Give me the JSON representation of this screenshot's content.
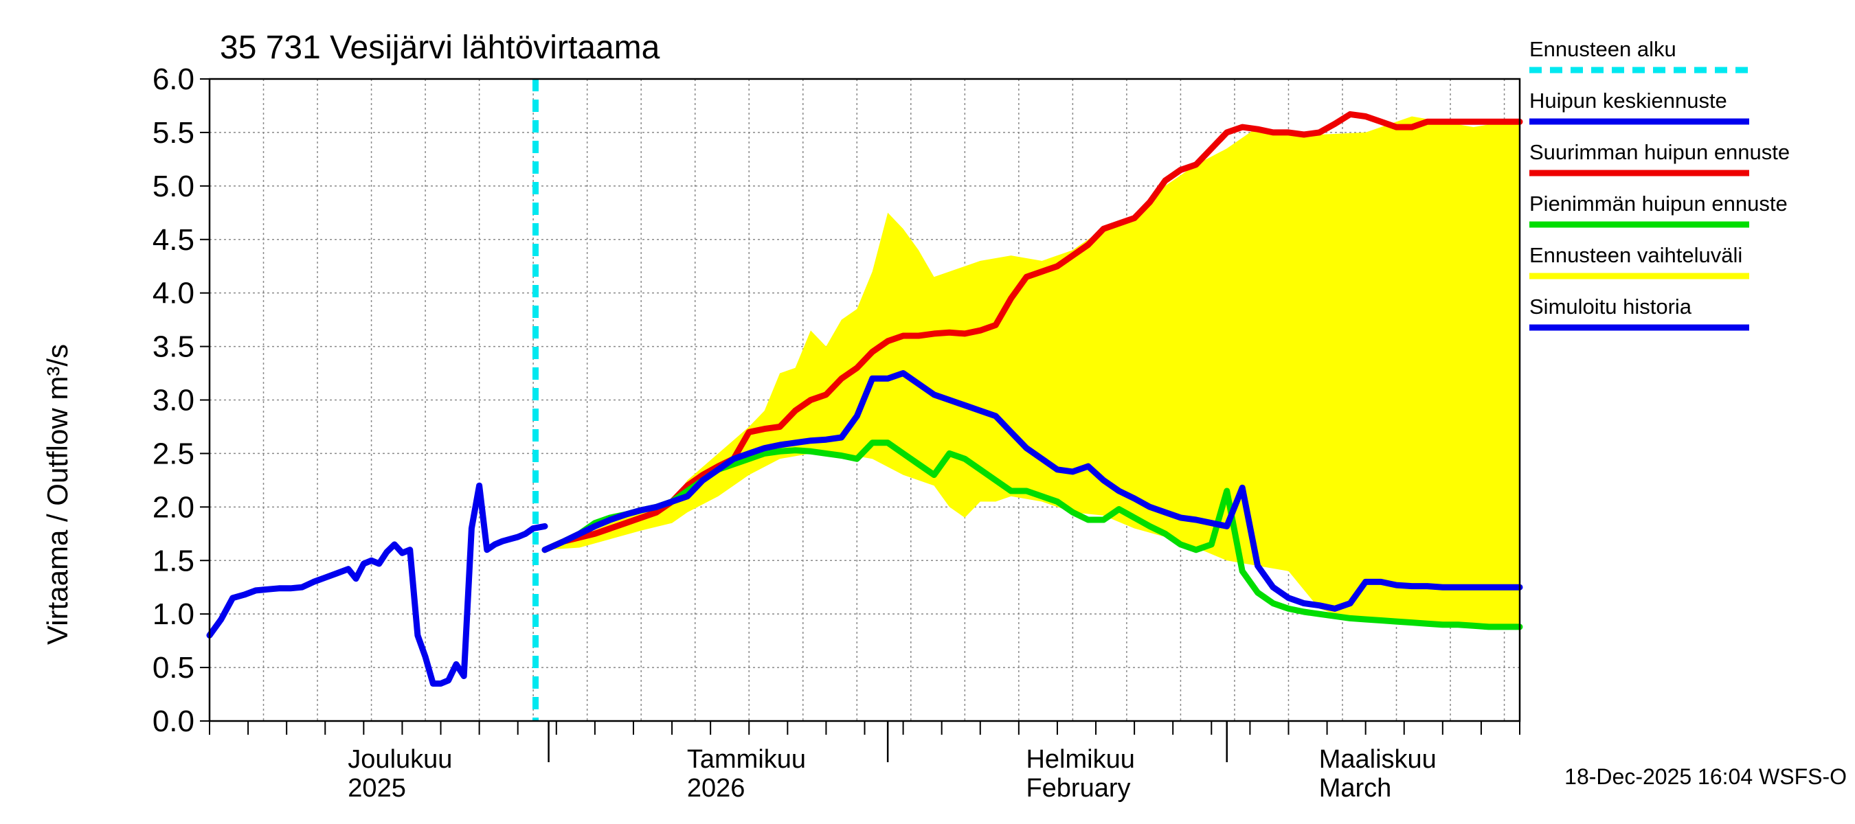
{
  "chart_data": {
    "type": "line",
    "title": "35 731 Vesijärvi lähtövirtaama",
    "ylabel": "Virtaama / Outflow    m³/s",
    "ylim": [
      0,
      6
    ],
    "xlim_days": [
      0,
      170
    ],
    "yticks": [
      "0.0",
      "0.5",
      "1.0",
      "1.5",
      "2.0",
      "2.5",
      "3.0",
      "3.5",
      "4.0",
      "4.5",
      "5.0",
      "5.5",
      "6.0"
    ],
    "month_labels": [
      {
        "day": 18,
        "line1": "Joulukuu",
        "line2": "2025"
      },
      {
        "day": 62,
        "line1": "Tammikuu",
        "line2": "2026"
      },
      {
        "day": 106,
        "line1": "Helmikuu",
        "line2": "February"
      },
      {
        "day": 144,
        "line1": "Maaliskuu",
        "line2": "March"
      }
    ],
    "forecast_start_day": 42.3,
    "timestamp": "18-Dec-2025 16:04 WSFS-O",
    "legend": {
      "placement": "right",
      "entries": [
        {
          "key": "start",
          "label": "Ennusteen alku",
          "color": "#00e8f0",
          "style": "dashed"
        },
        {
          "key": "mean",
          "label": "Huipun keskiennuste",
          "color": "#0000ee",
          "style": "solid"
        },
        {
          "key": "max",
          "label": "Suurimman huipun ennuste",
          "color": "#ee0000",
          "style": "solid"
        },
        {
          "key": "min",
          "label": "Pienimmän huipun ennuste",
          "color": "#00dd00",
          "style": "solid"
        },
        {
          "key": "range",
          "label": "Ennusteen vaihteluväli",
          "color": "#ffff00",
          "style": "band"
        },
        {
          "key": "history",
          "label": "Simuloitu historia",
          "color": "#0000ee",
          "style": "solid"
        }
      ]
    },
    "series": [
      {
        "name": "Simuloitu historia",
        "key": "history",
        "x": [
          0,
          1.5,
          3,
          4.5,
          6,
          7.5,
          9,
          10.5,
          12,
          13.5,
          15,
          16.5,
          18,
          19,
          20,
          21,
          22,
          23,
          24,
          25,
          26,
          27,
          28,
          29,
          30,
          31,
          32,
          33,
          34,
          35,
          36,
          37,
          38,
          39,
          40,
          41,
          42,
          43.5
        ],
        "y": [
          0.8,
          0.95,
          1.15,
          1.18,
          1.22,
          1.23,
          1.24,
          1.24,
          1.25,
          1.3,
          1.34,
          1.38,
          1.42,
          1.33,
          1.47,
          1.5,
          1.47,
          1.58,
          1.65,
          1.57,
          1.6,
          0.8,
          0.6,
          0.35,
          0.35,
          0.38,
          0.53,
          0.42,
          1.8,
          2.2,
          1.6,
          1.65,
          1.68,
          1.7,
          1.72,
          1.75,
          1.8,
          1.82
        ]
      },
      {
        "name": "Ennusteen vaihteluväli (upper)",
        "key": "range_upper",
        "x": [
          43.5,
          48,
          52,
          56,
          60,
          62,
          66,
          70,
          72,
          74,
          76,
          78,
          80,
          82,
          84,
          86,
          88,
          90,
          92,
          94,
          96,
          100,
          104,
          108,
          112,
          116,
          120,
          124,
          128,
          132,
          136,
          140,
          144,
          150,
          156,
          160,
          164,
          168,
          170
        ],
        "y": [
          1.6,
          1.72,
          1.85,
          1.95,
          2.05,
          2.25,
          2.5,
          2.75,
          2.9,
          3.25,
          3.3,
          3.65,
          3.5,
          3.75,
          3.85,
          4.2,
          4.75,
          4.6,
          4.4,
          4.15,
          4.2,
          4.3,
          4.35,
          4.3,
          4.4,
          4.6,
          4.7,
          5.0,
          5.2,
          5.35,
          5.55,
          5.5,
          5.48,
          5.5,
          5.65,
          5.6,
          5.55,
          5.6,
          5.6
        ]
      },
      {
        "name": "Ennusteen vaihteluväli (lower)",
        "key": "range_lower",
        "x": [
          43.5,
          48,
          52,
          56,
          60,
          62,
          66,
          70,
          74,
          78,
          82,
          86,
          90,
          94,
          96,
          98,
          100,
          102,
          104,
          108,
          112,
          116,
          120,
          124,
          128,
          132,
          136,
          140,
          144,
          146,
          148,
          150,
          152,
          156,
          160,
          164,
          168,
          170
        ],
        "y": [
          1.6,
          1.62,
          1.7,
          1.78,
          1.85,
          1.95,
          2.1,
          2.3,
          2.45,
          2.5,
          2.5,
          2.45,
          2.3,
          2.2,
          2.0,
          1.9,
          2.05,
          2.05,
          2.1,
          2.05,
          1.95,
          1.92,
          1.8,
          1.72,
          1.62,
          1.5,
          1.45,
          1.4,
          1.05,
          1.0,
          0.98,
          0.96,
          0.95,
          0.93,
          0.92,
          0.9,
          0.88,
          0.88
        ]
      },
      {
        "name": "Suurimman huipun ennuste",
        "key": "max",
        "x": [
          43.5,
          46,
          50,
          54,
          58,
          60,
          62,
          64,
          66,
          68,
          70,
          72,
          74,
          76,
          78,
          80,
          82,
          84,
          86,
          88,
          90,
          92,
          94,
          96,
          98,
          100,
          102,
          104,
          106,
          108,
          110,
          112,
          114,
          116,
          118,
          120,
          122,
          124,
          126,
          128,
          130,
          132,
          134,
          136,
          138,
          140,
          142,
          144,
          146,
          148,
          150,
          152,
          154,
          156,
          158,
          160,
          162,
          164,
          166,
          168,
          170
        ],
        "y": [
          1.6,
          1.68,
          1.75,
          1.85,
          1.95,
          2.05,
          2.2,
          2.3,
          2.38,
          2.45,
          2.7,
          2.73,
          2.75,
          2.9,
          3.0,
          3.05,
          3.2,
          3.3,
          3.45,
          3.55,
          3.6,
          3.6,
          3.62,
          3.63,
          3.62,
          3.65,
          3.7,
          3.95,
          4.15,
          4.2,
          4.25,
          4.35,
          4.45,
          4.6,
          4.65,
          4.7,
          4.85,
          5.05,
          5.15,
          5.2,
          5.35,
          5.5,
          5.55,
          5.53,
          5.5,
          5.5,
          5.48,
          5.5,
          5.58,
          5.67,
          5.65,
          5.6,
          5.55,
          5.55,
          5.6,
          5.6,
          5.6,
          5.6,
          5.6,
          5.6,
          5.6
        ]
      },
      {
        "name": "Pienimmän huipun ennuste",
        "key": "min",
        "x": [
          43.5,
          46,
          48,
          50,
          52,
          54,
          56,
          58,
          60,
          62,
          64,
          66,
          68,
          70,
          72,
          74,
          76,
          78,
          80,
          82,
          84,
          86,
          88,
          90,
          92,
          94,
          96,
          98,
          100,
          102,
          104,
          106,
          108,
          110,
          112,
          114,
          116,
          118,
          120,
          122,
          124,
          126,
          128,
          130,
          132,
          134,
          136,
          138,
          140,
          142,
          144,
          146,
          148,
          150,
          152,
          154,
          156,
          158,
          160,
          162,
          164,
          166,
          168,
          170
        ],
        "y": [
          1.6,
          1.68,
          1.75,
          1.85,
          1.9,
          1.93,
          1.97,
          2.0,
          2.05,
          2.15,
          2.25,
          2.35,
          2.4,
          2.45,
          2.5,
          2.52,
          2.53,
          2.52,
          2.5,
          2.48,
          2.45,
          2.6,
          2.6,
          2.5,
          2.4,
          2.3,
          2.5,
          2.45,
          2.35,
          2.25,
          2.15,
          2.15,
          2.1,
          2.05,
          1.95,
          1.88,
          1.88,
          1.98,
          1.9,
          1.82,
          1.75,
          1.65,
          1.6,
          1.65,
          2.15,
          1.4,
          1.2,
          1.1,
          1.05,
          1.02,
          1.0,
          0.98,
          0.96,
          0.95,
          0.94,
          0.93,
          0.92,
          0.91,
          0.9,
          0.9,
          0.89,
          0.88,
          0.88,
          0.88
        ]
      },
      {
        "name": "Huipun keskiennuste",
        "key": "mean",
        "x": [
          43.5,
          46,
          48,
          50,
          52,
          54,
          56,
          58,
          60,
          62,
          64,
          66,
          68,
          70,
          72,
          74,
          76,
          78,
          80,
          82,
          84,
          86,
          88,
          90,
          92,
          94,
          96,
          98,
          100,
          102,
          104,
          106,
          108,
          110,
          112,
          114,
          116,
          118,
          120,
          122,
          124,
          126,
          128,
          130,
          132,
          134,
          136,
          138,
          140,
          142,
          144,
          146,
          148,
          150,
          152,
          154,
          156,
          158,
          160,
          162,
          164,
          166,
          168,
          170
        ],
        "y": [
          1.6,
          1.68,
          1.75,
          1.82,
          1.88,
          1.93,
          1.97,
          2.0,
          2.05,
          2.1,
          2.25,
          2.35,
          2.45,
          2.5,
          2.55,
          2.58,
          2.6,
          2.62,
          2.63,
          2.65,
          2.85,
          3.2,
          3.2,
          3.25,
          3.15,
          3.05,
          3.0,
          2.95,
          2.9,
          2.85,
          2.7,
          2.55,
          2.45,
          2.35,
          2.33,
          2.38,
          2.25,
          2.15,
          2.08,
          2.0,
          1.95,
          1.9,
          1.88,
          1.85,
          1.82,
          2.18,
          1.45,
          1.25,
          1.15,
          1.1,
          1.08,
          1.05,
          1.1,
          1.3,
          1.3,
          1.27,
          1.26,
          1.26,
          1.25,
          1.25,
          1.25,
          1.25,
          1.25,
          1.25
        ]
      }
    ]
  }
}
